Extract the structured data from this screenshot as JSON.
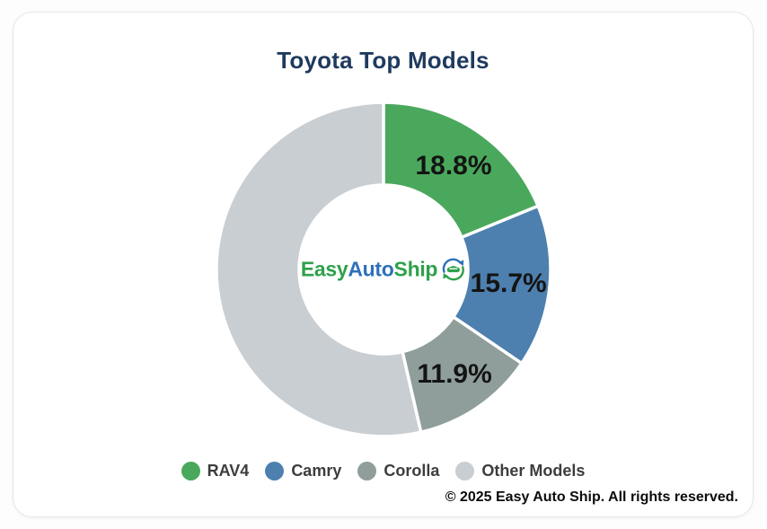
{
  "card": {
    "title": "Toyota Top Models",
    "copyright": "© 2025 Easy Auto Ship. All rights reserved."
  },
  "logo": {
    "part1": "Easy",
    "part2": "Auto",
    "part3": "Ship",
    "green": "#2fa14b",
    "blue": "#2d71b8",
    "mark": "car-recycle-circle-icon"
  },
  "chart_data": {
    "type": "pie",
    "donut": true,
    "title": "Toyota Top Models",
    "start_angle_deg": 0,
    "direction": "clockwise",
    "slices": [
      {
        "name": "RAV4",
        "value": 18.8,
        "label": "18.8%",
        "color": "#4aa85c"
      },
      {
        "name": "Camry",
        "value": 15.7,
        "label": "15.7%",
        "color": "#4d80af"
      },
      {
        "name": "Corolla",
        "value": 11.9,
        "label": "11.9%",
        "color": "#8f9e9b"
      },
      {
        "name": "Other Models",
        "value": 53.6,
        "label": "",
        "color": "#c9ced3"
      }
    ],
    "label_color": "#141414",
    "slice_gap_color": "#ffffff",
    "legend_position": "bottom"
  },
  "legend": {
    "items": [
      {
        "label": "RAV4",
        "color": "#4aa85c"
      },
      {
        "label": "Camry",
        "color": "#4d80af"
      },
      {
        "label": "Corolla",
        "color": "#8f9e9b"
      },
      {
        "label": "Other Models",
        "color": "#c9ced3"
      }
    ]
  }
}
